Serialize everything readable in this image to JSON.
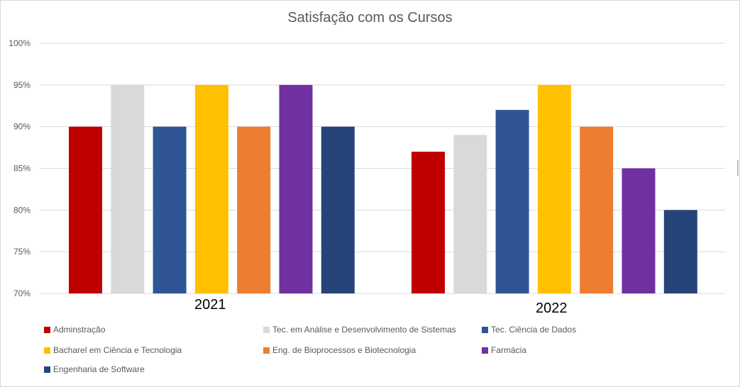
{
  "chart_data": {
    "type": "bar",
    "title": "Satisfação com os Cursos",
    "xlabel": "",
    "ylabel": "",
    "categories": [
      "2021",
      "2022"
    ],
    "ylim": [
      0.7,
      1.0
    ],
    "yticks": [
      "100%",
      "95%",
      "90%",
      "85%",
      "80%",
      "75%",
      "70%"
    ],
    "ytick_values": [
      1.0,
      0.95,
      0.9,
      0.85,
      0.8,
      0.75,
      0.7
    ],
    "grid": true,
    "legend_position": "bottom",
    "series": [
      {
        "name": "Adminstração",
        "color": "#c00000",
        "values": [
          0.9,
          0.87
        ]
      },
      {
        "name": "Tec. em Análise e Desenvolvimento de Sistemas",
        "color": "#d9d9d9",
        "values": [
          0.95,
          0.89
        ]
      },
      {
        "name": "Tec. Ciência de Dados",
        "color": "#2f5597",
        "values": [
          0.9,
          0.92
        ]
      },
      {
        "name": "Bacharel em Ciência e Tecnologia",
        "color": "#ffc000",
        "values": [
          0.95,
          0.95
        ]
      },
      {
        "name": "Eng. de Bioprocessos e Biotecnologia",
        "color": "#ed7d31",
        "values": [
          0.9,
          0.9
        ]
      },
      {
        "name": "Farmácia",
        "color": "#7030a0",
        "values": [
          0.95,
          0.85
        ]
      },
      {
        "name": "Engenharia de Software",
        "color": "#264478",
        "values": [
          0.9,
          0.8
        ]
      }
    ]
  }
}
